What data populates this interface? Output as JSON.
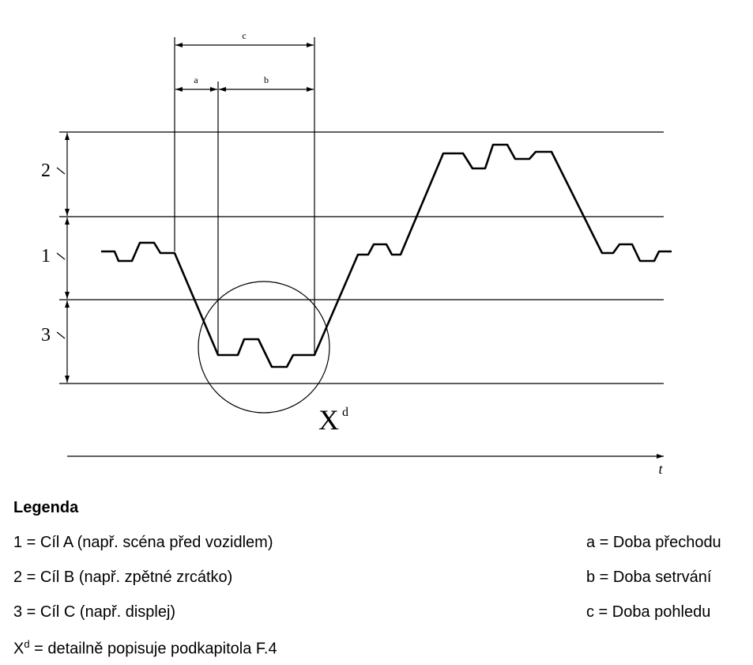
{
  "diagram": {
    "dimensions": [
      {
        "label": "c"
      },
      {
        "label": "a"
      },
      {
        "label": "b"
      }
    ],
    "zones": [
      {
        "label": "2"
      },
      {
        "label": "1"
      },
      {
        "label": "3"
      }
    ],
    "detail_marker": {
      "label": "X",
      "superscript": "d"
    },
    "time_axis": {
      "label": "t"
    }
  },
  "legend": {
    "title": "Legenda",
    "items": [
      "1 = Cíl A (např. scéna před vozidlem)",
      "2 = Cíl B (např. zpětné zrcátko)",
      "3 = Cíl C (např. displej)"
    ],
    "note": {
      "symbol": "X",
      "superscript": "d",
      "text": " = detailně popisuje podkapitola F.4"
    },
    "definitions": [
      "a = Doba přechodu",
      "b = Doba setrvání",
      "c = Doba pohledu"
    ]
  }
}
